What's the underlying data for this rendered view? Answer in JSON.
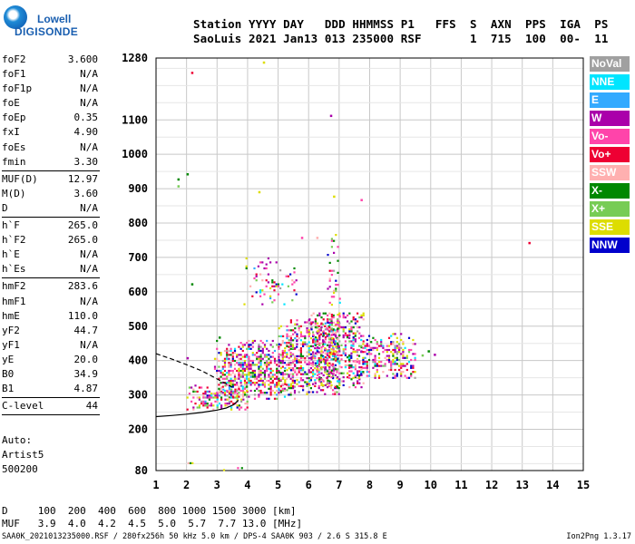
{
  "logo": {
    "line1": "Lowell",
    "line2": "DIGISONDE"
  },
  "header": {
    "line1": "Station YYYY DAY   DDD HHMMSS P1   FFS  S  AXN  PPS  IGA  PS",
    "line2": "SaoLuis 2021 Jan13 013 235000 RSF       1  715  100  00-  11"
  },
  "params": [
    {
      "label": "foF2",
      "value": "3.600"
    },
    {
      "label": "foF1",
      "value": "N/A"
    },
    {
      "label": "foF1p",
      "value": "N/A"
    },
    {
      "label": "foE",
      "value": "N/A"
    },
    {
      "label": "foEp",
      "value": "0.35"
    },
    {
      "label": "fxI",
      "value": "4.90"
    },
    {
      "label": "foEs",
      "value": "N/A"
    },
    {
      "label": "fmin",
      "value": "3.30",
      "sep": true
    },
    {
      "label": "MUF(D)",
      "value": "12.97"
    },
    {
      "label": "M(D)",
      "value": "3.60"
    },
    {
      "label": "D",
      "value": "N/A",
      "sep": true
    },
    {
      "label": "h`F",
      "value": "265.0"
    },
    {
      "label": "h`F2",
      "value": "265.0"
    },
    {
      "label": "h`E",
      "value": "N/A"
    },
    {
      "label": "h`Es",
      "value": "N/A",
      "sep": true
    },
    {
      "label": "hmF2",
      "value": "283.6"
    },
    {
      "label": "hmF1",
      "value": "N/A"
    },
    {
      "label": "hmE",
      "value": "110.0"
    },
    {
      "label": "yF2",
      "value": "44.7"
    },
    {
      "label": "yF1",
      "value": "N/A"
    },
    {
      "label": "yE",
      "value": "20.0"
    },
    {
      "label": "B0",
      "value": "34.9"
    },
    {
      "label": "B1",
      "value": "4.87",
      "sep": true
    },
    {
      "label": "C-level",
      "value": "44",
      "sep": true
    }
  ],
  "auto": {
    "line1": "Auto:",
    "line2": "Artist5",
    "line3": "500200"
  },
  "legend": [
    {
      "label": "NoVal",
      "color": "#a0a0a0"
    },
    {
      "label": "NNE",
      "color": "#00e5ff"
    },
    {
      "label": "E",
      "color": "#33aaff"
    },
    {
      "label": "W",
      "color": "#aa00aa"
    },
    {
      "label": "Vo-",
      "color": "#ff44aa"
    },
    {
      "label": "Vo+",
      "color": "#ee0033"
    },
    {
      "label": "SSW",
      "color": "#ffb0b0"
    },
    {
      "label": "X-",
      "color": "#008800"
    },
    {
      "label": "X+",
      "color": "#77cc55"
    },
    {
      "label": "SSE",
      "color": "#dddd00"
    },
    {
      "label": "NNW",
      "color": "#0000cc"
    }
  ],
  "footer": {
    "d_row": "D     100  200  400  600  800 1000 1500 3000 [km]",
    "muf_row": "MUF   3.9  4.0  4.2  4.5  5.0  5.7  7.7 13.0 [MHz]",
    "file": "SAA0K_2021013235000.RSF / 280fx256h 50 kHz 5.0 km / DPS-4 SAA0K 903 / 2.6 S 315.8 E",
    "version": "Ion2Png 1.3.17"
  },
  "chart_data": {
    "type": "scatter",
    "x_ticks": [
      1,
      2,
      3,
      4,
      5,
      6,
      7,
      8,
      9,
      10,
      11,
      12,
      13,
      14,
      15
    ],
    "y_ticks": [
      80,
      200,
      300,
      400,
      500,
      600,
      700,
      800,
      900,
      1000,
      1100,
      1280
    ],
    "xlim": [
      1,
      15
    ],
    "ylim": [
      80,
      1280
    ],
    "grid": true,
    "legend_position": "right",
    "traces": [
      {
        "name": "",
        "style": "solid",
        "x": [
          1.0,
          1.5,
          2.0,
          2.5,
          3.0,
          3.3,
          3.55,
          3.7
        ],
        "y": [
          237,
          240,
          244,
          249,
          256,
          262,
          272,
          285
        ]
      },
      {
        "name": "",
        "style": "dashed",
        "x": [
          1.0,
          1.5,
          2.0,
          2.5,
          2.8,
          3.1,
          3.35,
          3.5
        ],
        "y": [
          420,
          405,
          388,
          370,
          356,
          342,
          330,
          322
        ]
      }
    ],
    "echo_regions": [
      {
        "x": [
          2.0,
          4.0
        ],
        "y": [
          255,
          330
        ],
        "density": 0.55
      },
      {
        "x": [
          2.9,
          5.6
        ],
        "y": [
          290,
          460
        ],
        "density": 0.6
      },
      {
        "x": [
          5.0,
          7.0
        ],
        "y": [
          300,
          520
        ],
        "density": 0.5
      },
      {
        "x": [
          6.0,
          7.8
        ],
        "y": [
          320,
          540
        ],
        "density": 0.45
      },
      {
        "x": [
          7.3,
          9.5
        ],
        "y": [
          350,
          480
        ],
        "density": 0.45
      },
      {
        "x": [
          3.8,
          5.6
        ],
        "y": [
          560,
          700
        ],
        "density": 0.12
      },
      {
        "x": [
          6.6,
          7.0
        ],
        "y": [
          330,
          780
        ],
        "density": 0.25
      },
      {
        "x": [
          1.9,
          2.2
        ],
        "y": [
          82,
          110
        ],
        "density": 0.3
      },
      {
        "x": [
          3.0,
          3.8
        ],
        "y": [
          80,
          90
        ],
        "density": 0.2
      }
    ],
    "isolated_points": [
      {
        "x": 1.7,
        "y": 930
      },
      {
        "x": 1.7,
        "y": 910
      },
      {
        "x": 2.0,
        "y": 945
      },
      {
        "x": 2.15,
        "y": 1240
      },
      {
        "x": 4.5,
        "y": 1270
      },
      {
        "x": 4.35,
        "y": 893
      },
      {
        "x": 6.7,
        "y": 1115
      },
      {
        "x": 6.8,
        "y": 880
      },
      {
        "x": 7.7,
        "y": 870
      },
      {
        "x": 13.2,
        "y": 745
      },
      {
        "x": 2.0,
        "y": 410
      },
      {
        "x": 2.15,
        "y": 625
      },
      {
        "x": 5.75,
        "y": 760
      },
      {
        "x": 6.25,
        "y": 760
      },
      {
        "x": 3.05,
        "y": 470
      },
      {
        "x": 9.7,
        "y": 418
      },
      {
        "x": 9.9,
        "y": 430
      },
      {
        "x": 10.1,
        "y": 420
      }
    ]
  }
}
